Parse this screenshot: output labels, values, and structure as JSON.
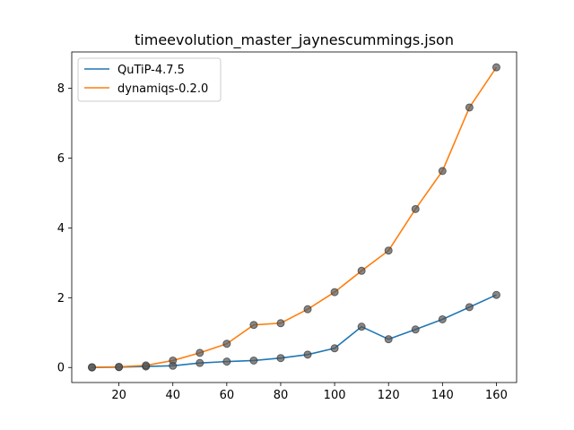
{
  "chart_data": {
    "type": "line",
    "title": "timeevolution_master_jaynescummings.json",
    "xlabel": "",
    "ylabel": "",
    "xlim": [
      2.5,
      167.5
    ],
    "ylim": [
      -0.43,
      9.04
    ],
    "xticks": [
      20,
      40,
      60,
      80,
      100,
      120,
      140,
      160
    ],
    "yticks": [
      0,
      2,
      4,
      6,
      8
    ],
    "grid": false,
    "legend_placement": "top-left",
    "x": [
      10,
      20,
      30,
      40,
      50,
      60,
      70,
      80,
      90,
      100,
      110,
      120,
      130,
      140,
      150,
      160
    ],
    "series": [
      {
        "name": "QuTiP-4.7.5",
        "color": "#1f77b4",
        "values": [
          0.0,
          0.01,
          0.03,
          0.05,
          0.13,
          0.17,
          0.2,
          0.27,
          0.37,
          0.55,
          1.17,
          0.81,
          1.09,
          1.38,
          1.73,
          2.08
        ]
      },
      {
        "name": "dynamiqs-0.2.0",
        "color": "#ff7f0e",
        "values": [
          0.01,
          0.02,
          0.06,
          0.2,
          0.42,
          0.68,
          1.22,
          1.27,
          1.67,
          2.16,
          2.77,
          3.35,
          4.54,
          5.63,
          7.45,
          8.6
        ]
      }
    ],
    "marker_color": "#555555"
  }
}
